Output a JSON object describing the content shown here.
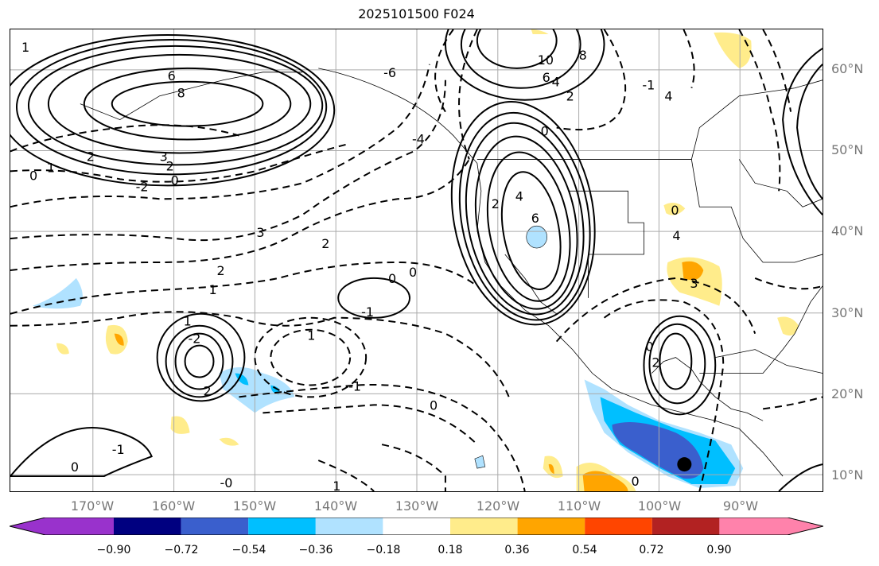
{
  "title": "2025101500 F024",
  "lat_labels": [
    "60°N",
    "50°N",
    "40°N",
    "30°N",
    "20°N",
    "10°N"
  ],
  "lon_labels": [
    "170°W",
    "160°W",
    "150°W",
    "140°W",
    "130°W",
    "120°W",
    "110°W",
    "100°W",
    "90°W"
  ],
  "colorbar": {
    "ticks": [
      "−0.90",
      "−0.72",
      "−0.54",
      "−0.36",
      "−0.18",
      "0.18",
      "0.36",
      "0.54",
      "0.72",
      "0.90"
    ],
    "colors": [
      "#9932CC",
      "#000080",
      "#3A5FCD",
      "#00BFFF",
      "#B0E2FF",
      "#FFFFFF",
      "#FFEC8B",
      "#FFA500",
      "#FF4500",
      "#B22222",
      "#FF82AB"
    ]
  },
  "contour_labels": [
    "6",
    "8",
    "2",
    "3",
    "2",
    "0",
    "1",
    "0",
    "-2",
    "3",
    "2",
    "2",
    "1",
    "-1",
    "0",
    "0",
    "1",
    "-2",
    "1",
    "-1",
    "0",
    "2",
    "6",
    "4",
    "2",
    "10",
    "8",
    "6",
    "4",
    "2",
    "0",
    "-4",
    "-6",
    "4",
    "0",
    "3",
    "-1",
    "0",
    "-0",
    "1",
    "0",
    "1",
    "-1",
    "0",
    "2",
    "4"
  ]
}
